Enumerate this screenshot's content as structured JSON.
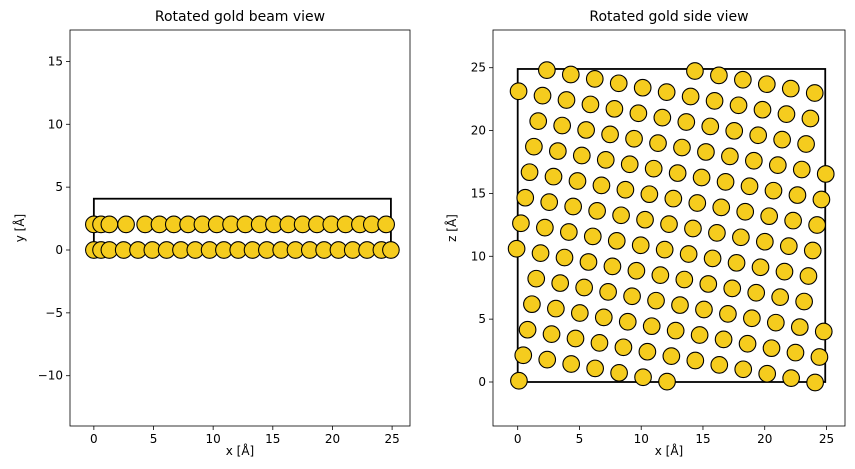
{
  "chart_data": [
    {
      "type": "scatter",
      "title": "Rotated gold beam view",
      "xlabel": "x [Å]",
      "ylabel": "y [Å]",
      "xlim": [
        -2,
        26.5
      ],
      "ylim": [
        -14,
        17.5
      ],
      "xticks": [
        0,
        5,
        10,
        15,
        20,
        25
      ],
      "yticks": [
        -10,
        -5,
        0,
        5,
        10,
        15
      ],
      "grid": false,
      "marker_color": "#f5cc1e",
      "edge_color": "#000000",
      "cell_box": {
        "x": [
          0,
          24.9
        ],
        "y": [
          0,
          4.08
        ]
      },
      "rows": [
        {
          "y": 0.0,
          "x": [
            0,
            0.6,
            1.3,
            2.5,
            3.7,
            4.9,
            6.1,
            7.3,
            8.5,
            9.7,
            10.9,
            12.1,
            13.3,
            14.5,
            15.7,
            16.9,
            18.1,
            19.3,
            20.5,
            21.7,
            22.9,
            24.1,
            24.9
          ]
        },
        {
          "y": 2.04,
          "x": [
            0,
            0.6,
            1.3,
            2.7,
            4.3,
            5.5,
            6.7,
            7.9,
            9.1,
            10.3,
            11.5,
            12.7,
            13.9,
            15.1,
            16.3,
            17.5,
            18.7,
            19.9,
            21.1,
            22.3,
            23.3,
            24.5
          ]
        }
      ]
    },
    {
      "type": "scatter",
      "title": "Rotated gold side view",
      "xlabel": "x [Å]",
      "ylabel": "z [Å]",
      "xlim": [
        -2,
        26.5
      ],
      "ylim": [
        -3.5,
        28
      ],
      "xticks": [
        0,
        5,
        10,
        15,
        20,
        25
      ],
      "yticks": [
        0,
        5,
        10,
        15,
        20,
        25
      ],
      "grid": false,
      "marker_color": "#f5cc1e",
      "edge_color": "#000000",
      "cell_box": {
        "x": [
          0,
          24.9
        ],
        "z": [
          0,
          24.9
        ]
      },
      "lattice": {
        "origin": [
          0.1,
          0.1
        ],
        "a": [
          1.94,
          -0.35
        ],
        "b": [
          0.35,
          2.03
        ],
        "i": [
          -2,
          14
        ],
        "j": [
          -1,
          13
        ]
      }
    }
  ]
}
